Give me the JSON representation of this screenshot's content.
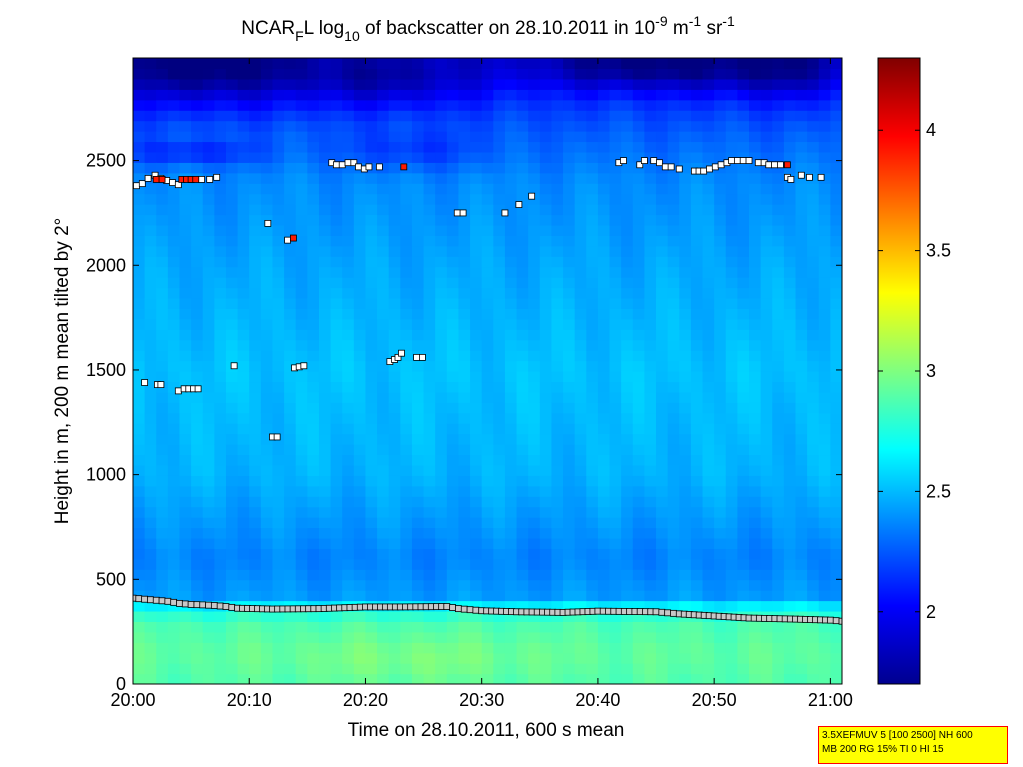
{
  "chart_data": {
    "type": "heatmap",
    "title_parts": {
      "a": "NCAR",
      "a_sub": "F",
      "b": "L log",
      "b_sub": "10",
      "c": " of backscatter on 28.10.2011 in 10",
      "c_sup": "-9",
      "d": " m",
      "d_sup": "-1",
      "e": " sr",
      "e_sup": "-1"
    },
    "xlabel": "Time on 28.10.2011, 600 s mean",
    "ylabel": "Height in m, 200 m mean tilted by 2°",
    "x_unit": "minutes after 20:00",
    "xlim": [
      0,
      61
    ],
    "ylim": [
      0,
      2990
    ],
    "x_ticks": [
      {
        "v": 0,
        "label": "20:00"
      },
      {
        "v": 10,
        "label": "20:10"
      },
      {
        "v": 20,
        "label": "20:20"
      },
      {
        "v": 30,
        "label": "20:30"
      },
      {
        "v": 40,
        "label": "20:40"
      },
      {
        "v": 50,
        "label": "20:50"
      },
      {
        "v": 60,
        "label": "21:00"
      }
    ],
    "y_ticks": [
      {
        "v": 0,
        "label": "0"
      },
      {
        "v": 500,
        "label": "500"
      },
      {
        "v": 1000,
        "label": "1000"
      },
      {
        "v": 1500,
        "label": "1500"
      },
      {
        "v": 2000,
        "label": "2000"
      },
      {
        "v": 2500,
        "label": "2500"
      }
    ],
    "colorbar": {
      "clim": [
        1.7,
        4.3
      ],
      "ticks": [
        {
          "v": 2,
          "label": "2"
        },
        {
          "v": 2.5,
          "label": "2.5"
        },
        {
          "v": 3,
          "label": "3"
        },
        {
          "v": 3.5,
          "label": "3.5"
        },
        {
          "v": 4,
          "label": "4"
        }
      ],
      "colormap": "jet"
    },
    "field_profile": [
      {
        "h": 0,
        "v": 2.88
      },
      {
        "h": 150,
        "v": 2.92
      },
      {
        "h": 300,
        "v": 2.86
      },
      {
        "h": 360,
        "v": 2.7
      },
      {
        "h": 420,
        "v": 2.42
      },
      {
        "h": 600,
        "v": 2.36
      },
      {
        "h": 1000,
        "v": 2.48
      },
      {
        "h": 1500,
        "v": 2.52
      },
      {
        "h": 2000,
        "v": 2.45
      },
      {
        "h": 2400,
        "v": 2.38
      },
      {
        "h": 2600,
        "v": 2.28
      },
      {
        "h": 2800,
        "v": 2.15
      },
      {
        "h": 2990,
        "v": 1.95
      }
    ],
    "series": [
      {
        "marker": "white-square",
        "points": [
          [
            0.3,
            2380
          ],
          [
            0.8,
            2390
          ],
          [
            1.3,
            2415
          ],
          [
            1.9,
            2430
          ],
          [
            2.4,
            2415
          ],
          [
            2.9,
            2405
          ],
          [
            3.4,
            2395
          ],
          [
            3.9,
            2385
          ],
          [
            5.0,
            2410
          ],
          [
            5.9,
            2410
          ],
          [
            6.6,
            2410
          ],
          [
            7.2,
            2420
          ],
          [
            1.0,
            1440
          ],
          [
            2.1,
            1430
          ],
          [
            2.4,
            1430
          ],
          [
            3.9,
            1400
          ],
          [
            4.4,
            1410
          ],
          [
            4.8,
            1410
          ],
          [
            5.2,
            1410
          ],
          [
            5.6,
            1410
          ],
          [
            8.7,
            1520
          ],
          [
            11.6,
            2200
          ],
          [
            12.0,
            1180
          ],
          [
            12.4,
            1180
          ],
          [
            13.3,
            2120
          ],
          [
            13.9,
            1510
          ],
          [
            14.3,
            1515
          ],
          [
            14.7,
            1520
          ],
          [
            17.1,
            2490
          ],
          [
            17.5,
            2480
          ],
          [
            18.0,
            2480
          ],
          [
            18.5,
            2490
          ],
          [
            19.0,
            2490
          ],
          [
            19.4,
            2470
          ],
          [
            19.9,
            2460
          ],
          [
            20.3,
            2470
          ],
          [
            21.2,
            2470
          ],
          [
            22.1,
            1540
          ],
          [
            22.5,
            1550
          ],
          [
            22.8,
            1560
          ],
          [
            23.1,
            1580
          ],
          [
            24.4,
            1560
          ],
          [
            24.9,
            1560
          ],
          [
            27.9,
            2250
          ],
          [
            28.4,
            2250
          ],
          [
            32.0,
            2250
          ],
          [
            33.2,
            2290
          ],
          [
            34.3,
            2330
          ],
          [
            41.8,
            2490
          ],
          [
            42.2,
            2500
          ],
          [
            43.6,
            2480
          ],
          [
            44.0,
            2500
          ],
          [
            44.8,
            2500
          ],
          [
            45.3,
            2490
          ],
          [
            45.8,
            2470
          ],
          [
            46.3,
            2470
          ],
          [
            47.0,
            2460
          ],
          [
            48.3,
            2450
          ],
          [
            48.7,
            2450
          ],
          [
            49.1,
            2450
          ],
          [
            49.6,
            2460
          ],
          [
            50.1,
            2470
          ],
          [
            50.6,
            2480
          ],
          [
            51.1,
            2490
          ],
          [
            51.5,
            2500
          ],
          [
            52.0,
            2500
          ],
          [
            52.5,
            2500
          ],
          [
            53.0,
            2500
          ],
          [
            53.8,
            2490
          ],
          [
            54.3,
            2490
          ],
          [
            54.7,
            2480
          ],
          [
            55.2,
            2480
          ],
          [
            55.7,
            2480
          ],
          [
            56.3,
            2420
          ],
          [
            56.6,
            2410
          ],
          [
            57.5,
            2430
          ],
          [
            58.2,
            2420
          ],
          [
            59.2,
            2420
          ]
        ]
      },
      {
        "marker": "red-square",
        "points": [
          [
            2.0,
            2410
          ],
          [
            2.5,
            2410
          ],
          [
            4.2,
            2410
          ],
          [
            4.6,
            2410
          ],
          [
            5.0,
            2410
          ],
          [
            5.4,
            2410
          ],
          [
            13.8,
            2130
          ],
          [
            23.3,
            2470
          ],
          [
            56.3,
            2480
          ]
        ]
      },
      {
        "marker": "gray-square",
        "points": [
          [
            0,
            410
          ],
          [
            2,
            400
          ],
          [
            3,
            395
          ],
          [
            4,
            385
          ],
          [
            5,
            380
          ],
          [
            6,
            378
          ],
          [
            7,
            375
          ],
          [
            8,
            370
          ],
          [
            9,
            362
          ],
          [
            12,
            358
          ],
          [
            16,
            360
          ],
          [
            20,
            368
          ],
          [
            23,
            368
          ],
          [
            27,
            370
          ],
          [
            28,
            360
          ],
          [
            30,
            350
          ],
          [
            33,
            345
          ],
          [
            37,
            342
          ],
          [
            40,
            348
          ],
          [
            45,
            345
          ],
          [
            47,
            335
          ],
          [
            50,
            325
          ],
          [
            53,
            315
          ],
          [
            57,
            310
          ],
          [
            60,
            305
          ],
          [
            61,
            300
          ]
        ]
      }
    ]
  },
  "info_box": {
    "line1": "3.5XEFMUV 5 [100 2500] NH 600",
    "line2": "MB 200 RG 15% TI 0 HI 15"
  },
  "colors": {
    "white_marker": "#ffffff",
    "red_marker": "#ff1a00",
    "gray_marker": "#c8c8c8",
    "info_bg": "#ffff00",
    "info_border": "#ff0000"
  }
}
